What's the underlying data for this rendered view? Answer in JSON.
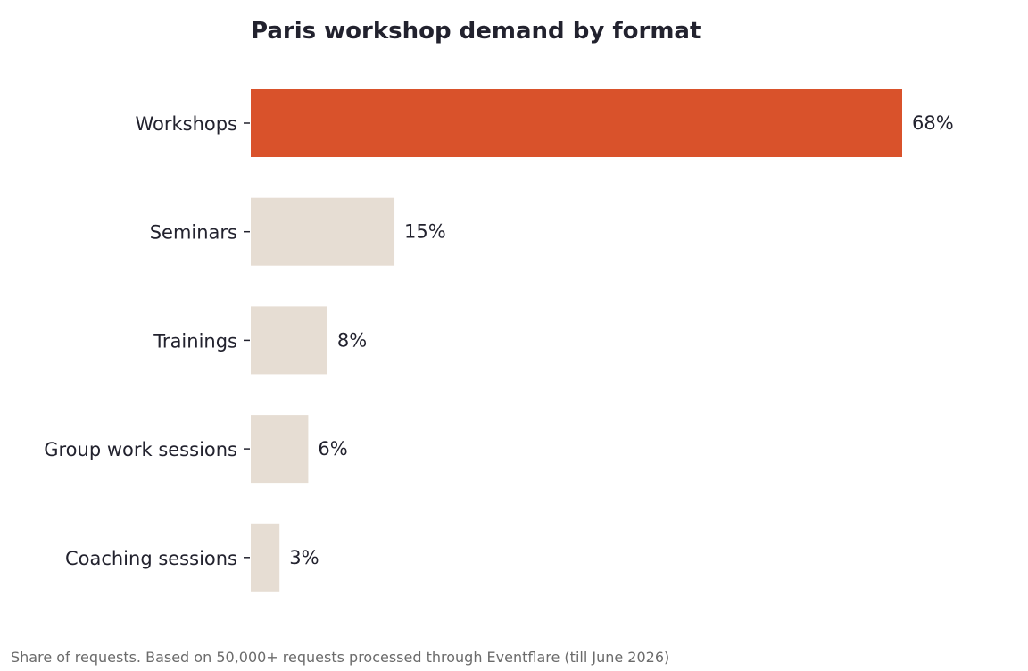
{
  "chart_data": {
    "type": "bar",
    "orientation": "horizontal",
    "title": "Paris workshop demand by format",
    "xlabel": "",
    "ylabel": "",
    "xlim": [
      0,
      68
    ],
    "grid": false,
    "legend": "none",
    "categories": [
      "Workshops",
      "Seminars",
      "Trainings",
      "Group work sessions",
      "Coaching sessions"
    ],
    "values": [
      68,
      15,
      8,
      6,
      3
    ],
    "value_labels": [
      "68%",
      "15%",
      "8%",
      "6%",
      "3%"
    ],
    "unit": "%",
    "highlight_index": 0
  },
  "colors": {
    "highlight": "#d9522b",
    "muted": "#e6ddd3",
    "text": "#22222e",
    "footnote": "#6b6b6b"
  },
  "footnote": "Share of requests. Based on 50,000+ requests processed through Eventflare (till June 2026)"
}
